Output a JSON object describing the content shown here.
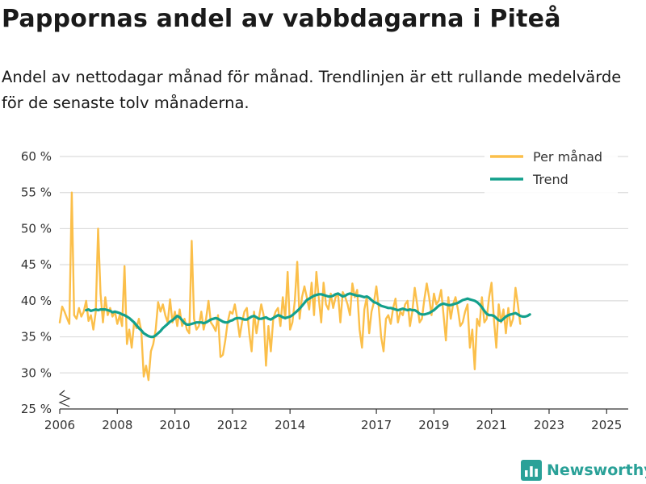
{
  "header": {
    "title": "Pappornas andel av vabbdagarna i Piteå",
    "subtitle": "Andel av nettodagar månad för månad. Trendlinjen är ett rullande medelvärde för de senaste tolv månaderna."
  },
  "brand": {
    "name": "Newsworthy",
    "icon": "bar-chart-icon",
    "color": "#2aa198"
  },
  "chart_data": {
    "type": "line",
    "title": "Pappornas andel av vabbdagarna i Piteå",
    "xlabel": "",
    "ylabel": "",
    "x_start": 2006.0,
    "x_step": 0.08333,
    "xlim": [
      2006.0,
      2025.75
    ],
    "ylim": [
      25,
      60
    ],
    "y_ticks": [
      25,
      30,
      35,
      40,
      45,
      50,
      55,
      60
    ],
    "y_tick_labels": [
      "25 %",
      "30 %",
      "35 %",
      "40 %",
      "45 %",
      "50 %",
      "55 %",
      "60 %"
    ],
    "x_ticks": [
      2006,
      2008,
      2010,
      2012,
      2014,
      2017,
      2019,
      2021,
      2023,
      2025
    ],
    "x_tick_labels": [
      "2006",
      "2008",
      "2010",
      "2012",
      "2014",
      "2017",
      "2019",
      "2021",
      "2023",
      "2025"
    ],
    "grid": true,
    "axis_break": true,
    "legend_position": "top-right",
    "series": [
      {
        "name": "Per månad",
        "color": "#fbbf4a",
        "values": [
          37,
          39.2,
          38.5,
          37.6,
          36.8,
          55,
          38,
          37.5,
          39,
          37.8,
          38.5,
          40,
          37.2,
          38,
          36,
          38.5,
          50,
          41,
          37,
          40.5,
          38,
          39,
          37.8,
          38.5,
          36.8,
          38,
          36.5,
          44.8,
          34,
          36,
          33.5,
          37,
          36.2,
          37.5,
          35.8,
          29.5,
          31,
          29,
          33,
          34,
          36,
          39.8,
          38.5,
          39.5,
          38,
          37,
          40.2,
          37,
          38.5,
          36.5,
          38.8,
          36.5,
          37.5,
          36,
          35.5,
          48.3,
          37.5,
          36,
          36.5,
          38.5,
          36,
          37.5,
          40,
          37,
          36.5,
          35.8,
          38,
          32.2,
          32.5,
          34.5,
          37,
          38.5,
          38.2,
          39.5,
          37.5,
          35,
          37,
          38.5,
          39,
          35.5,
          33,
          38.5,
          35.5,
          37.5,
          39.5,
          38,
          31,
          36.5,
          33,
          37.5,
          38.5,
          39,
          36.5,
          40.5,
          37.5,
          44,
          36,
          37,
          40,
          45.4,
          37.5,
          40.5,
          42,
          40.5,
          38.8,
          42.5,
          38,
          44,
          40.3,
          37,
          42.5,
          39.5,
          38.8,
          41,
          39,
          40.5,
          41,
          37,
          41.2,
          40.5,
          39.5,
          38,
          42.4,
          40.5,
          41.5,
          36,
          33.5,
          38.8,
          40.5,
          35.5,
          38.5,
          39.8,
          42,
          39,
          35,
          33,
          37.5,
          38,
          36.8,
          39,
          40.3,
          37,
          38.5,
          38,
          39.5,
          40,
          36.5,
          38.5,
          41.8,
          39.5,
          37,
          37.5,
          40.2,
          42.4,
          40.5,
          38,
          41,
          39.5,
          40,
          41.5,
          38,
          34.5,
          40.5,
          37.5,
          39.5,
          40.5,
          38.8,
          36.5,
          37,
          38.5,
          39.5,
          33.5,
          36,
          30.5,
          37.5,
          36.5,
          40.5,
          37,
          37.5,
          40.5,
          42.5,
          37.5,
          33.5,
          39.5,
          37,
          38.8,
          35.5,
          39,
          36.5,
          37.5,
          41.8,
          39.5,
          36.8
        ]
      },
      {
        "name": "Trend",
        "color": "#13a08c",
        "start_index": 11,
        "values": [
          38.7,
          38.8,
          38.6,
          38.7,
          38.8,
          38.7,
          38.8,
          38.8,
          38.8,
          38.7,
          38.6,
          38.4,
          38.5,
          38.4,
          38.3,
          38.1,
          38,
          37.8,
          37.6,
          37.3,
          37,
          36.6,
          36.2,
          35.9,
          35.5,
          35.3,
          35.1,
          35,
          35,
          35.2,
          35.5,
          35.8,
          36.2,
          36.5,
          36.8,
          37.1,
          37.3,
          37.6,
          37.9,
          37.7,
          37.3,
          36.9,
          36.7,
          36.7,
          36.8,
          36.9,
          37,
          37,
          37,
          36.9,
          37,
          37.2,
          37.4,
          37.5,
          37.6,
          37.5,
          37.3,
          37.1,
          37,
          37,
          37.2,
          37.3,
          37.5,
          37.6,
          37.6,
          37.5,
          37.4,
          37.4,
          37.6,
          37.8,
          37.9,
          37.7,
          37.5,
          37.5,
          37.6,
          37.7,
          37.5,
          37.4,
          37.6,
          37.8,
          38,
          37.9,
          37.7,
          37.6,
          37.7,
          37.8,
          38,
          38.3,
          38.6,
          38.9,
          39.3,
          39.7,
          40.1,
          40.3,
          40.5,
          40.7,
          40.8,
          40.9,
          40.9,
          40.8,
          40.7,
          40.6,
          40.6,
          40.7,
          40.9,
          41,
          40.8,
          40.6,
          40.7,
          40.9,
          41,
          40.9,
          40.8,
          40.7,
          40.7,
          40.6,
          40.5,
          40.6,
          40.4,
          40.1,
          39.8,
          39.7,
          39.5,
          39.3,
          39.2,
          39.1,
          39,
          39,
          38.9,
          38.8,
          38.7,
          38.8,
          38.9,
          38.8,
          38.7,
          38.8,
          38.7,
          38.7,
          38.5,
          38.2,
          38.1,
          38.1,
          38.2,
          38.3,
          38.5,
          38.7,
          39,
          39.3,
          39.5,
          39.6,
          39.5,
          39.4,
          39.4,
          39.5,
          39.6,
          39.7,
          39.9,
          40.1,
          40.2,
          40.3,
          40.2,
          40.1,
          40,
          39.8,
          39.5,
          39.1,
          38.6,
          38.2,
          38,
          38,
          37.9,
          37.6,
          37.3,
          37.2,
          37.5,
          37.8,
          38,
          38.1,
          38.2,
          38.3,
          38.1,
          37.9,
          37.8,
          37.8,
          37.9,
          38.1
        ]
      }
    ]
  }
}
